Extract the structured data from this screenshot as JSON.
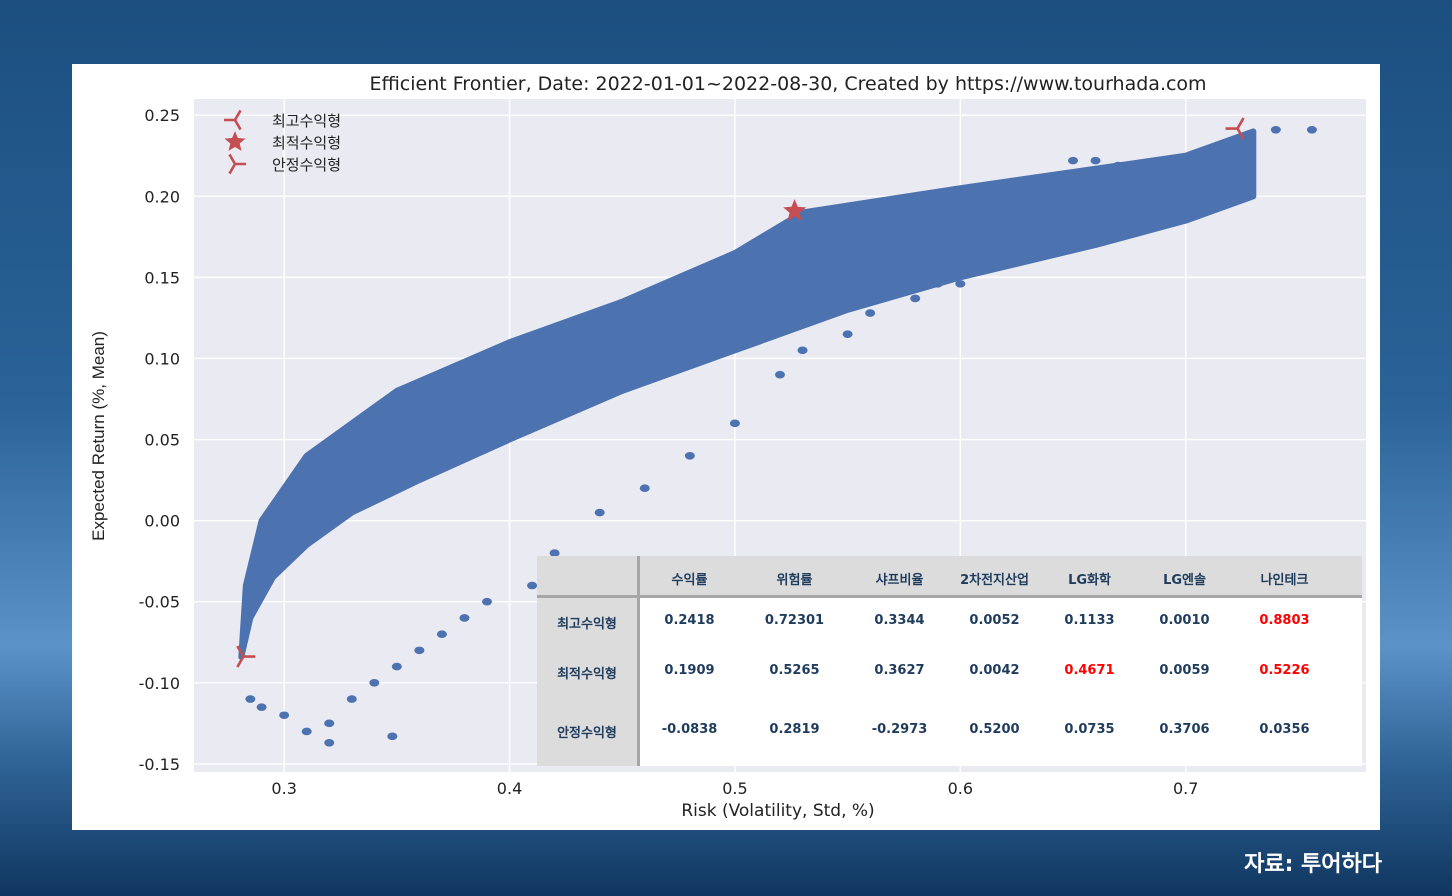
{
  "source_text": "자료: 투어하다",
  "chart_data": {
    "type": "scatter",
    "title": "Efficient Frontier,  Date: 2022-01-01~2022-08-30, Created by https://www.tourhada.com",
    "xlabel": "Risk (Volatility, Std, %)",
    "ylabel": "Expected Return (%, Mean)",
    "xlim": [
      0.26,
      0.78
    ],
    "ylim": [
      -0.155,
      0.26
    ],
    "x_ticks": [
      0.3,
      0.4,
      0.5,
      0.6,
      0.7
    ],
    "x_tick_labels": [
      "0.3",
      "0.4",
      "0.5",
      "0.6",
      "0.7"
    ],
    "y_ticks": [
      0.25,
      0.2,
      0.15,
      0.1,
      0.05,
      0.0,
      -0.05,
      -0.1,
      -0.15
    ],
    "y_tick_labels": [
      "0.25",
      "0.20",
      "0.15",
      "0.10",
      "0.05",
      "0.00",
      "-0.05",
      "-0.10",
      "-0.15"
    ],
    "grid": true,
    "legend_position": "top-left",
    "colors": {
      "points": "#4c72b0",
      "markers": "#c44e52",
      "plot_bg": "#eaeaf2",
      "grid": "#ffffff"
    },
    "cloud": {
      "lower_boundary": [
        [
          0.281,
          -0.084
        ],
        [
          0.285,
          -0.06
        ],
        [
          0.295,
          -0.035
        ],
        [
          0.31,
          -0.015
        ],
        [
          0.33,
          0.005
        ],
        [
          0.36,
          0.025
        ],
        [
          0.4,
          0.05
        ],
        [
          0.45,
          0.08
        ],
        [
          0.5,
          0.105
        ],
        [
          0.55,
          0.13
        ],
        [
          0.6,
          0.15
        ],
        [
          0.66,
          0.17
        ],
        [
          0.7,
          0.185
        ],
        [
          0.73,
          0.2
        ]
      ],
      "upper_boundary": [
        [
          0.281,
          -0.084
        ],
        [
          0.283,
          -0.04
        ],
        [
          0.29,
          0.0
        ],
        [
          0.31,
          0.04
        ],
        [
          0.35,
          0.08
        ],
        [
          0.4,
          0.11
        ],
        [
          0.45,
          0.135
        ],
        [
          0.5,
          0.165
        ],
        [
          0.53,
          0.19
        ],
        [
          0.6,
          0.205
        ],
        [
          0.65,
          0.215
        ],
        [
          0.7,
          0.225
        ],
        [
          0.73,
          0.24
        ]
      ]
    },
    "series": [
      {
        "name": "최고수익형",
        "marker": "tri_left",
        "points": [
          {
            "x": 0.723,
            "y": 0.2418
          }
        ]
      },
      {
        "name": "최적수익형",
        "marker": "star",
        "points": [
          {
            "x": 0.5265,
            "y": 0.1909
          }
        ]
      },
      {
        "name": "안정수익형",
        "marker": "tri_right",
        "points": [
          {
            "x": 0.2819,
            "y": -0.0838
          }
        ]
      }
    ],
    "outliers": [
      [
        0.74,
        0.241
      ],
      [
        0.756,
        0.241
      ],
      [
        0.726,
        0.227
      ],
      [
        0.72,
        0.222
      ],
      [
        0.708,
        0.218
      ],
      [
        0.696,
        0.222
      ],
      [
        0.69,
        0.202
      ],
      [
        0.675,
        0.2
      ],
      [
        0.65,
        0.222
      ],
      [
        0.66,
        0.222
      ],
      [
        0.67,
        0.219
      ],
      [
        0.64,
        0.212
      ],
      [
        0.63,
        0.21
      ],
      [
        0.645,
        0.2
      ],
      [
        0.68,
        0.18
      ],
      [
        0.67,
        0.18
      ],
      [
        0.655,
        0.172
      ],
      [
        0.62,
        0.2
      ],
      [
        0.6,
        0.185
      ],
      [
        0.61,
        0.17
      ],
      [
        0.6,
        0.146
      ],
      [
        0.59,
        0.146
      ],
      [
        0.58,
        0.137
      ],
      [
        0.56,
        0.128
      ],
      [
        0.55,
        0.115
      ],
      [
        0.53,
        0.105
      ],
      [
        0.52,
        0.09
      ],
      [
        0.5,
        0.06
      ],
      [
        0.48,
        0.04
      ],
      [
        0.46,
        0.02
      ],
      [
        0.44,
        0.005
      ],
      [
        0.42,
        -0.02
      ],
      [
        0.41,
        -0.04
      ],
      [
        0.39,
        -0.05
      ],
      [
        0.38,
        -0.06
      ],
      [
        0.37,
        -0.07
      ],
      [
        0.36,
        -0.08
      ],
      [
        0.35,
        -0.09
      ],
      [
        0.34,
        -0.1
      ],
      [
        0.33,
        -0.11
      ],
      [
        0.32,
        -0.125
      ],
      [
        0.31,
        -0.13
      ],
      [
        0.3,
        -0.12
      ],
      [
        0.29,
        -0.115
      ],
      [
        0.285,
        -0.11
      ],
      [
        0.348,
        -0.133
      ],
      [
        0.32,
        -0.137
      ]
    ],
    "table": {
      "columns": [
        "수익률",
        "위험률",
        "샤프비율",
        "2차전지산업",
        "LG화학",
        "LG엔솔",
        "나인테크"
      ],
      "rows": [
        {
          "label": "최고수익형",
          "values": [
            "0.2418",
            "0.72301",
            "0.3344",
            "0.0052",
            "0.1133",
            "0.0010",
            "0.8803"
          ],
          "highlight": [
            6
          ]
        },
        {
          "label": "최적수익형",
          "values": [
            "0.1909",
            "0.5265",
            "0.3627",
            "0.0042",
            "0.4671",
            "0.0059",
            "0.5226"
          ],
          "highlight": [
            4,
            6
          ]
        },
        {
          "label": "안정수익형",
          "values": [
            "-0.0838",
            "0.2819",
            "-0.2973",
            "0.5200",
            "0.0735",
            "0.3706",
            "0.0356"
          ],
          "highlight": []
        }
      ]
    }
  }
}
